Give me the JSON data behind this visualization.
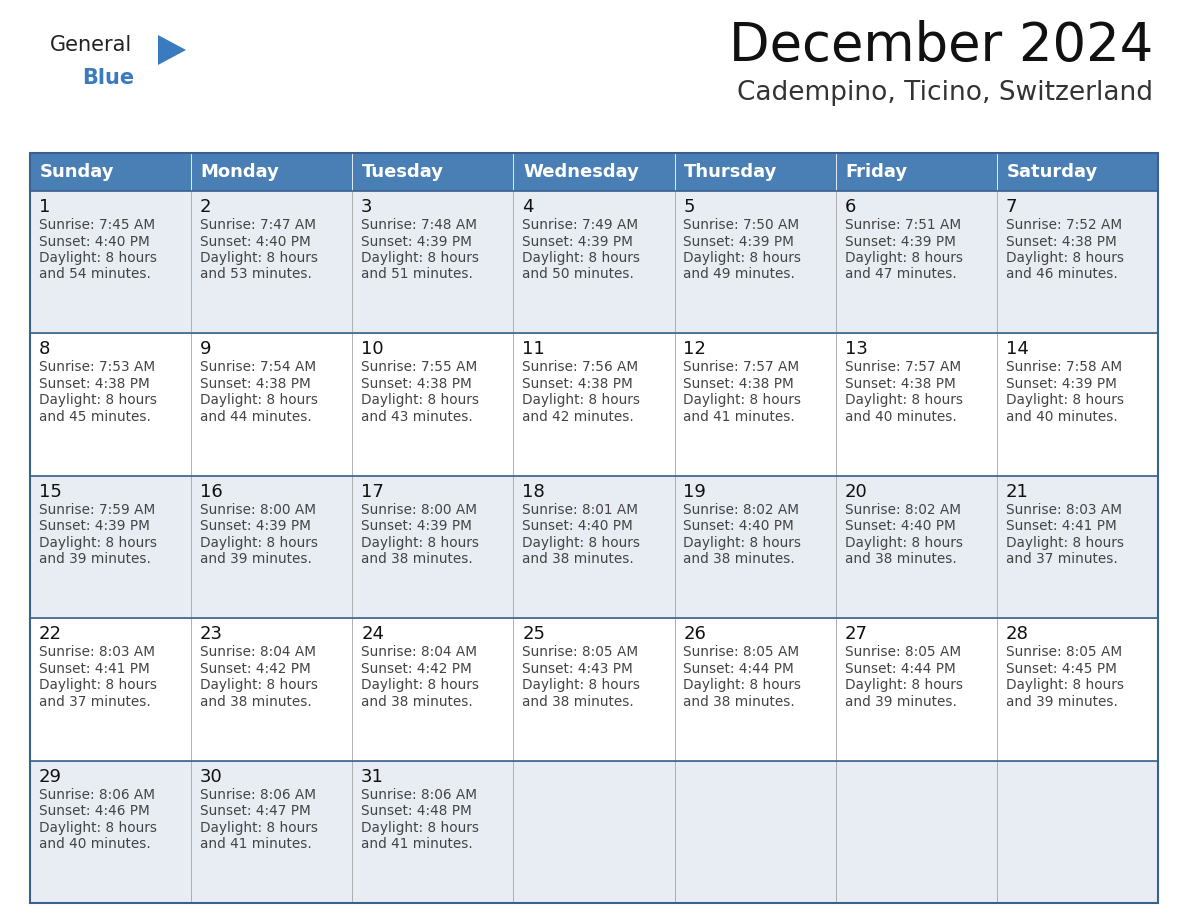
{
  "title": "December 2024",
  "subtitle": "Cadempino, Ticino, Switzerland",
  "header_bg_color": "#4a7fb5",
  "header_text_color": "#ffffff",
  "row_bg_even": "#e8edf4",
  "row_bg_odd": "#ffffff",
  "border_color": "#3a6090",
  "cell_border_color": "#aaaaaa",
  "text_color": "#333333",
  "day_num_color": "#111111",
  "days_of_week": [
    "Sunday",
    "Monday",
    "Tuesday",
    "Wednesday",
    "Thursday",
    "Friday",
    "Saturday"
  ],
  "title_fontsize": 38,
  "subtitle_fontsize": 19,
  "header_fontsize": 13,
  "day_num_fontsize": 13,
  "cell_fontsize": 9.8,
  "logo_general_color": "#222222",
  "logo_blue_color": "#3a7abf",
  "logo_triangle_color": "#3a7abf",
  "calendar_data": [
    [
      {
        "day": 1,
        "sunrise": "7:45 AM",
        "sunset": "4:40 PM",
        "daylight_hours": 8,
        "daylight_minutes": 54
      },
      {
        "day": 2,
        "sunrise": "7:47 AM",
        "sunset": "4:40 PM",
        "daylight_hours": 8,
        "daylight_minutes": 53
      },
      {
        "day": 3,
        "sunrise": "7:48 AM",
        "sunset": "4:39 PM",
        "daylight_hours": 8,
        "daylight_minutes": 51
      },
      {
        "day": 4,
        "sunrise": "7:49 AM",
        "sunset": "4:39 PM",
        "daylight_hours": 8,
        "daylight_minutes": 50
      },
      {
        "day": 5,
        "sunrise": "7:50 AM",
        "sunset": "4:39 PM",
        "daylight_hours": 8,
        "daylight_minutes": 49
      },
      {
        "day": 6,
        "sunrise": "7:51 AM",
        "sunset": "4:39 PM",
        "daylight_hours": 8,
        "daylight_minutes": 47
      },
      {
        "day": 7,
        "sunrise": "7:52 AM",
        "sunset": "4:38 PM",
        "daylight_hours": 8,
        "daylight_minutes": 46
      }
    ],
    [
      {
        "day": 8,
        "sunrise": "7:53 AM",
        "sunset": "4:38 PM",
        "daylight_hours": 8,
        "daylight_minutes": 45
      },
      {
        "day": 9,
        "sunrise": "7:54 AM",
        "sunset": "4:38 PM",
        "daylight_hours": 8,
        "daylight_minutes": 44
      },
      {
        "day": 10,
        "sunrise": "7:55 AM",
        "sunset": "4:38 PM",
        "daylight_hours": 8,
        "daylight_minutes": 43
      },
      {
        "day": 11,
        "sunrise": "7:56 AM",
        "sunset": "4:38 PM",
        "daylight_hours": 8,
        "daylight_minutes": 42
      },
      {
        "day": 12,
        "sunrise": "7:57 AM",
        "sunset": "4:38 PM",
        "daylight_hours": 8,
        "daylight_minutes": 41
      },
      {
        "day": 13,
        "sunrise": "7:57 AM",
        "sunset": "4:38 PM",
        "daylight_hours": 8,
        "daylight_minutes": 40
      },
      {
        "day": 14,
        "sunrise": "7:58 AM",
        "sunset": "4:39 PM",
        "daylight_hours": 8,
        "daylight_minutes": 40
      }
    ],
    [
      {
        "day": 15,
        "sunrise": "7:59 AM",
        "sunset": "4:39 PM",
        "daylight_hours": 8,
        "daylight_minutes": 39
      },
      {
        "day": 16,
        "sunrise": "8:00 AM",
        "sunset": "4:39 PM",
        "daylight_hours": 8,
        "daylight_minutes": 39
      },
      {
        "day": 17,
        "sunrise": "8:00 AM",
        "sunset": "4:39 PM",
        "daylight_hours": 8,
        "daylight_minutes": 38
      },
      {
        "day": 18,
        "sunrise": "8:01 AM",
        "sunset": "4:40 PM",
        "daylight_hours": 8,
        "daylight_minutes": 38
      },
      {
        "day": 19,
        "sunrise": "8:02 AM",
        "sunset": "4:40 PM",
        "daylight_hours": 8,
        "daylight_minutes": 38
      },
      {
        "day": 20,
        "sunrise": "8:02 AM",
        "sunset": "4:40 PM",
        "daylight_hours": 8,
        "daylight_minutes": 38
      },
      {
        "day": 21,
        "sunrise": "8:03 AM",
        "sunset": "4:41 PM",
        "daylight_hours": 8,
        "daylight_minutes": 37
      }
    ],
    [
      {
        "day": 22,
        "sunrise": "8:03 AM",
        "sunset": "4:41 PM",
        "daylight_hours": 8,
        "daylight_minutes": 37
      },
      {
        "day": 23,
        "sunrise": "8:04 AM",
        "sunset": "4:42 PM",
        "daylight_hours": 8,
        "daylight_minutes": 38
      },
      {
        "day": 24,
        "sunrise": "8:04 AM",
        "sunset": "4:42 PM",
        "daylight_hours": 8,
        "daylight_minutes": 38
      },
      {
        "day": 25,
        "sunrise": "8:05 AM",
        "sunset": "4:43 PM",
        "daylight_hours": 8,
        "daylight_minutes": 38
      },
      {
        "day": 26,
        "sunrise": "8:05 AM",
        "sunset": "4:44 PM",
        "daylight_hours": 8,
        "daylight_minutes": 38
      },
      {
        "day": 27,
        "sunrise": "8:05 AM",
        "sunset": "4:44 PM",
        "daylight_hours": 8,
        "daylight_minutes": 39
      },
      {
        "day": 28,
        "sunrise": "8:05 AM",
        "sunset": "4:45 PM",
        "daylight_hours": 8,
        "daylight_minutes": 39
      }
    ],
    [
      {
        "day": 29,
        "sunrise": "8:06 AM",
        "sunset": "4:46 PM",
        "daylight_hours": 8,
        "daylight_minutes": 40
      },
      {
        "day": 30,
        "sunrise": "8:06 AM",
        "sunset": "4:47 PM",
        "daylight_hours": 8,
        "daylight_minutes": 41
      },
      {
        "day": 31,
        "sunrise": "8:06 AM",
        "sunset": "4:48 PM",
        "daylight_hours": 8,
        "daylight_minutes": 41
      },
      null,
      null,
      null,
      null
    ]
  ]
}
